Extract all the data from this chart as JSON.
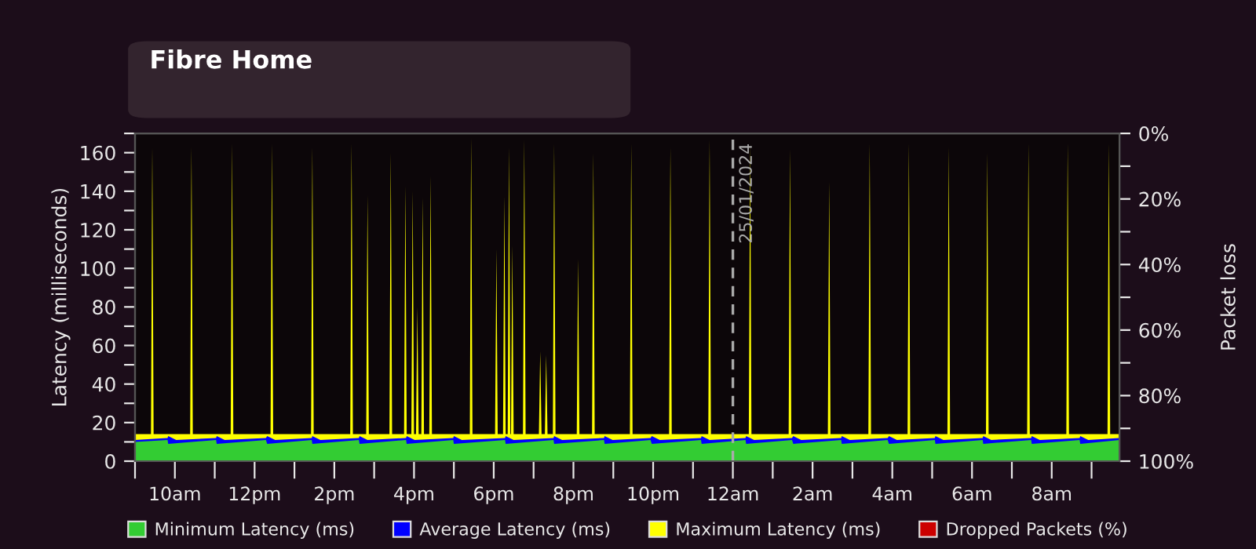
{
  "chart_data": {
    "type": "area",
    "title": "Fibre Home",
    "ylabel": "Latency (milliseconds)",
    "y2label": "Packet loss",
    "xlim": [
      "2024-01-24T09:00",
      "2024-01-25T09:42"
    ],
    "xticks": [
      {
        "value": "2024-01-24T09:00",
        "label": null
      },
      {
        "value": "2024-01-24T10:00",
        "label": "10am"
      },
      {
        "value": "2024-01-24T11:00",
        "label": null
      },
      {
        "value": "2024-01-24T12:00",
        "label": "12pm"
      },
      {
        "value": "2024-01-24T13:00",
        "label": null
      },
      {
        "value": "2024-01-24T14:00",
        "label": "2pm"
      },
      {
        "value": "2024-01-24T15:00",
        "label": null
      },
      {
        "value": "2024-01-24T16:00",
        "label": "4pm"
      },
      {
        "value": "2024-01-24T17:00",
        "label": null
      },
      {
        "value": "2024-01-24T18:00",
        "label": "6pm"
      },
      {
        "value": "2024-01-24T19:00",
        "label": null
      },
      {
        "value": "2024-01-24T20:00",
        "label": "8pm"
      },
      {
        "value": "2024-01-24T21:00",
        "label": null
      },
      {
        "value": "2024-01-24T22:00",
        "label": "10pm"
      },
      {
        "value": "2024-01-24T23:00",
        "label": null
      },
      {
        "value": "2024-01-25T00:00",
        "label": "12am"
      },
      {
        "value": "2024-01-25T01:00",
        "label": null
      },
      {
        "value": "2024-01-25T02:00",
        "label": "2am"
      },
      {
        "value": "2024-01-25T03:00",
        "label": null
      },
      {
        "value": "2024-01-25T04:00",
        "label": "4am"
      },
      {
        "value": "2024-01-25T05:00",
        "label": null
      },
      {
        "value": "2024-01-25T06:00",
        "label": "6am"
      },
      {
        "value": "2024-01-25T07:00",
        "label": null
      },
      {
        "value": "2024-01-25T08:00",
        "label": "8am"
      },
      {
        "value": "2024-01-25T09:00",
        "label": null
      }
    ],
    "ylim": [
      0,
      170
    ],
    "yticks": [
      0,
      {
        "value": 10,
        "label": null
      },
      20,
      {
        "value": 30,
        "label": null
      },
      40,
      {
        "value": 50,
        "label": null
      },
      60,
      {
        "value": 70,
        "label": null
      },
      80,
      {
        "value": 90,
        "label": null
      },
      100,
      {
        "value": 110,
        "label": null
      },
      120,
      {
        "value": 130,
        "label": null
      },
      140,
      {
        "value": 150,
        "label": null
      },
      160,
      {
        "value": 170,
        "label": null
      }
    ],
    "y2lim": [
      100,
      0
    ],
    "y2ticks": [
      {
        "value": 0,
        "label": "0%"
      },
      {
        "value": 10,
        "label": null
      },
      {
        "value": 20,
        "label": "20%"
      },
      {
        "value": 30,
        "label": null
      },
      {
        "value": 40,
        "label": "40%"
      },
      {
        "value": 50,
        "label": null
      },
      {
        "value": 60,
        "label": "60%"
      },
      {
        "value": 70,
        "label": null
      },
      {
        "value": 80,
        "label": "80%"
      },
      {
        "value": 90,
        "label": null
      },
      {
        "value": 100,
        "label": "100%"
      }
    ],
    "grid": false,
    "legend": "bottom",
    "marker": "none",
    "ref_lines": [
      {
        "axis": "x",
        "value": "2024-01-25T00:00",
        "label": "25/01/2024",
        "color": "#aaaaaa",
        "line_style": "dashed"
      }
    ],
    "series": [
      {
        "name": "Minimum Latency (ms)",
        "color": "#33cc33",
        "x": [
          "2024-01-24T09:00",
          "2024-01-24T09:49",
          "2024-01-24T09:50",
          "2024-01-24T11:02",
          "2024-01-24T11:03",
          "2024-01-24T12:17",
          "2024-01-24T12:19",
          "2024-01-24T13:26",
          "2024-01-24T13:27",
          "2024-01-24T14:37",
          "2024-01-24T14:38",
          "2024-01-24T15:48",
          "2024-01-24T15:49",
          "2024-01-24T16:59",
          "2024-01-24T17:00",
          "2024-01-24T18:17",
          "2024-01-24T18:18",
          "2024-01-24T19:30",
          "2024-01-24T19:31",
          "2024-01-24T20:46",
          "2024-01-24T20:47",
          "2024-01-24T21:56",
          "2024-01-24T21:58",
          "2024-01-24T23:12",
          "2024-01-24T23:13",
          "2024-01-25T00:19",
          "2024-01-25T00:20",
          "2024-01-25T01:29",
          "2024-01-25T01:31",
          "2024-01-25T02:43",
          "2024-01-25T02:44",
          "2024-01-25T03:53",
          "2024-01-25T03:55",
          "2024-01-25T05:04",
          "2024-01-25T05:05",
          "2024-01-25T06:16",
          "2024-01-25T06:17",
          "2024-01-25T07:29",
          "2024-01-25T07:30",
          "2024-01-25T08:42",
          "2024-01-25T08:43",
          "2024-01-25T09:42"
        ],
        "values": [
          10,
          11,
          9,
          11,
          9,
          11,
          9,
          11,
          9,
          11,
          9,
          11,
          9,
          11,
          9,
          11,
          9,
          11,
          9,
          11,
          9,
          11,
          9,
          11,
          9,
          11,
          9,
          11,
          9,
          11,
          9,
          11,
          9,
          11,
          9,
          11,
          9,
          11,
          9,
          11,
          9,
          11
        ]
      },
      {
        "name": "Average Latency (ms)",
        "color": "#0000ff",
        "x": [
          "2024-01-24T09:00",
          "2024-01-24T09:49",
          "2024-01-24T09:50",
          "2024-01-24T10:02",
          "2024-01-24T11:02",
          "2024-01-24T11:03",
          "2024-01-24T11:15",
          "2024-01-24T12:17",
          "2024-01-24T12:19",
          "2024-01-24T12:31",
          "2024-01-24T13:26",
          "2024-01-24T13:27",
          "2024-01-24T13:39",
          "2024-01-24T14:37",
          "2024-01-24T14:38",
          "2024-01-24T14:50",
          "2024-01-24T15:48",
          "2024-01-24T15:49",
          "2024-01-24T16:01",
          "2024-01-24T16:59",
          "2024-01-24T17:00",
          "2024-01-24T17:12",
          "2024-01-24T18:17",
          "2024-01-24T18:18",
          "2024-01-24T18:30",
          "2024-01-24T19:30",
          "2024-01-24T19:31",
          "2024-01-24T19:43",
          "2024-01-24T20:46",
          "2024-01-24T20:47",
          "2024-01-24T20:59",
          "2024-01-24T21:56",
          "2024-01-24T21:58",
          "2024-01-24T22:10",
          "2024-01-24T23:12",
          "2024-01-24T23:13",
          "2024-01-24T23:25",
          "2024-01-25T00:19",
          "2024-01-25T00:20",
          "2024-01-25T00:32",
          "2024-01-25T01:29",
          "2024-01-25T01:31",
          "2024-01-25T01:43",
          "2024-01-25T02:43",
          "2024-01-25T02:44",
          "2024-01-25T02:56",
          "2024-01-25T03:53",
          "2024-01-25T03:55",
          "2024-01-25T04:07",
          "2024-01-25T05:04",
          "2024-01-25T05:05",
          "2024-01-25T05:17",
          "2024-01-25T06:16",
          "2024-01-25T06:17",
          "2024-01-25T06:29",
          "2024-01-25T07:29",
          "2024-01-25T07:30",
          "2024-01-25T07:42",
          "2024-01-25T08:42",
          "2024-01-25T08:43",
          "2024-01-25T08:55",
          "2024-01-25T09:42"
        ],
        "values": [
          11,
          12,
          13,
          11,
          12,
          13,
          11,
          12,
          13,
          11,
          12,
          13,
          11,
          12,
          13,
          11,
          12,
          13,
          11,
          12,
          13,
          11,
          12,
          13,
          11,
          12,
          13,
          11,
          12,
          13,
          11,
          12,
          13,
          11,
          12,
          13,
          11,
          12,
          13,
          11,
          12,
          13,
          11,
          12,
          13,
          11,
          12,
          13,
          11,
          12,
          13,
          11,
          12,
          13,
          11,
          12,
          13,
          11,
          12,
          13,
          11,
          12
        ]
      },
      {
        "name": "Maximum Latency (ms)",
        "color": "#ffff00",
        "x": [
          "2024-01-24T09:00",
          "2024-01-24T09:24",
          "2024-01-24T09:26",
          "2024-01-24T09:28",
          "2024-01-24T10:23",
          "2024-01-24T10:25",
          "2024-01-24T10:27",
          "2024-01-24T11:24",
          "2024-01-24T11:26",
          "2024-01-24T11:28",
          "2024-01-24T12:24",
          "2024-01-24T12:26",
          "2024-01-24T12:28",
          "2024-01-24T13:25",
          "2024-01-24T13:27",
          "2024-01-24T13:29",
          "2024-01-24T14:24",
          "2024-01-24T14:26",
          "2024-01-24T14:28",
          "2024-01-24T14:48",
          "2024-01-24T14:50",
          "2024-01-24T14:52",
          "2024-01-24T15:23",
          "2024-01-24T15:25",
          "2024-01-24T15:27",
          "2024-01-24T15:45",
          "2024-01-24T15:47",
          "2024-01-24T15:49",
          "2024-01-24T15:56",
          "2024-01-24T15:58",
          "2024-01-24T16:00",
          "2024-01-24T16:03",
          "2024-01-24T16:05",
          "2024-01-24T16:07",
          "2024-01-24T16:11",
          "2024-01-24T16:13",
          "2024-01-24T16:15",
          "2024-01-24T16:23",
          "2024-01-24T16:25",
          "2024-01-24T16:27",
          "2024-01-24T17:24",
          "2024-01-24T17:26",
          "2024-01-24T17:28",
          "2024-01-24T18:02",
          "2024-01-24T18:04",
          "2024-01-24T18:06",
          "2024-01-24T18:14",
          "2024-01-24T18:16",
          "2024-01-24T18:18",
          "2024-01-24T18:21",
          "2024-01-24T18:23",
          "2024-01-24T18:25",
          "2024-01-24T18:26",
          "2024-01-24T18:28",
          "2024-01-24T18:30",
          "2024-01-24T18:44",
          "2024-01-24T18:46",
          "2024-01-24T18:48",
          "2024-01-24T19:08",
          "2024-01-24T19:10",
          "2024-01-24T19:12",
          "2024-01-24T19:17",
          "2024-01-24T19:19",
          "2024-01-24T19:21",
          "2024-01-24T19:29",
          "2024-01-24T19:31",
          "2024-01-24T19:33",
          "2024-01-24T20:05",
          "2024-01-24T20:07",
          "2024-01-24T20:09",
          "2024-01-24T20:28",
          "2024-01-24T20:30",
          "2024-01-24T20:32",
          "2024-01-24T21:25",
          "2024-01-24T21:27",
          "2024-01-24T21:29",
          "2024-01-24T22:24",
          "2024-01-24T22:26",
          "2024-01-24T22:28",
          "2024-01-24T23:23",
          "2024-01-24T23:25",
          "2024-01-24T23:27",
          "2024-01-25T00:24",
          "2024-01-25T00:26",
          "2024-01-25T00:28",
          "2024-01-25T01:24",
          "2024-01-25T01:26",
          "2024-01-25T01:28",
          "2024-01-25T02:23",
          "2024-01-25T02:25",
          "2024-01-25T02:27",
          "2024-01-25T03:24",
          "2024-01-25T03:26",
          "2024-01-25T03:28",
          "2024-01-25T04:23",
          "2024-01-25T04:25",
          "2024-01-25T04:27",
          "2024-01-25T05:23",
          "2024-01-25T05:25",
          "2024-01-25T05:27",
          "2024-01-25T06:21",
          "2024-01-25T06:23",
          "2024-01-25T06:25",
          "2024-01-25T07:23",
          "2024-01-25T07:25",
          "2024-01-25T07:27",
          "2024-01-25T08:22",
          "2024-01-25T08:24",
          "2024-01-25T08:26",
          "2024-01-25T09:24",
          "2024-01-25T09:26",
          "2024-01-25T09:28",
          "2024-01-25T09:42"
        ],
        "values": [
          14,
          14,
          163,
          14,
          14,
          163,
          14,
          14,
          165,
          14,
          14,
          165,
          14,
          14,
          163,
          14,
          14,
          165,
          14,
          14,
          138,
          14,
          14,
          160,
          14,
          14,
          143,
          14,
          14,
          140,
          14,
          14,
          80,
          14,
          14,
          137,
          14,
          14,
          148,
          14,
          14,
          168,
          14,
          14,
          110,
          14,
          14,
          138,
          14,
          14,
          163,
          14,
          14,
          112,
          14,
          14,
          167,
          14,
          14,
          57,
          14,
          14,
          55,
          14,
          14,
          165,
          14,
          14,
          105,
          14,
          14,
          160,
          14,
          14,
          165,
          14,
          14,
          163,
          14,
          14,
          167,
          14,
          14,
          165,
          14,
          14,
          162,
          14,
          14,
          145,
          14,
          14,
          165,
          14,
          14,
          165,
          14,
          14,
          163,
          14,
          14,
          160,
          14,
          14,
          165,
          14,
          14,
          165,
          14,
          14,
          165,
          14,
          14
        ]
      },
      {
        "name": "Dropped Packets (%)",
        "color": "#cc0000"
      }
    ]
  }
}
